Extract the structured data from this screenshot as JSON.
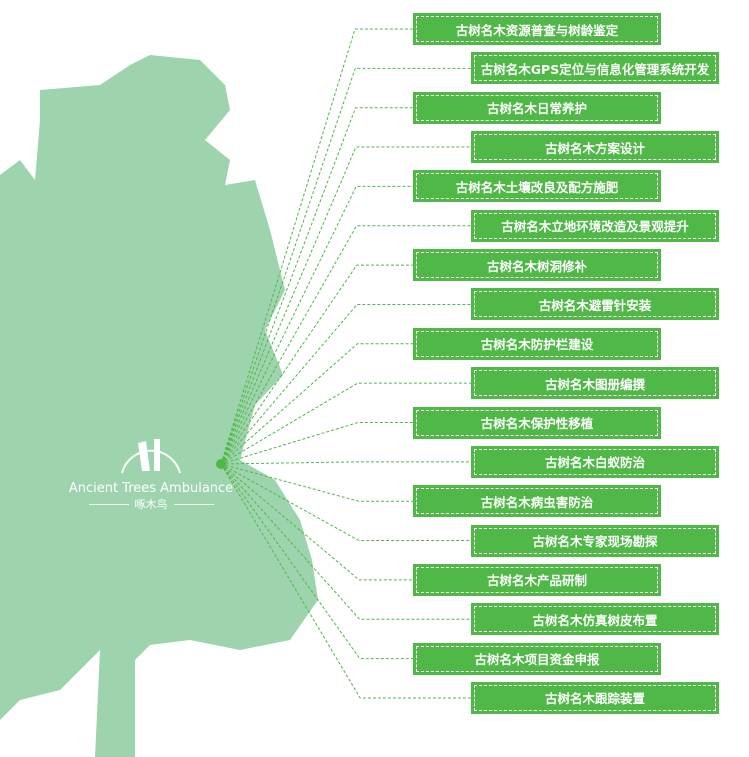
{
  "colors": {
    "tree": "#9dd4ad",
    "accent": "#4fb847",
    "line": "#4fb847"
  },
  "logo": {
    "english": "Ancient Trees Ambulance",
    "chinese": "啄木鸟"
  },
  "items": [
    "古树名木资源普查与树龄鉴定",
    "古树名木GPS定位与信息化管理系统开发",
    "古树名木日常养护",
    "古树名木方案设计",
    "古树名木土壤改良及配方施肥",
    "古树名木立地环境改造及景观提升",
    "古树名木树洞修补",
    "古树名木避雷针安装",
    "古树名木防护栏建设",
    "古树名木图册编撰",
    "古树名木保护性移植",
    "古树名木白蚁防治",
    "古树名木病虫害防治",
    "古树名木专家现场勘探",
    "古树名木产品研制",
    "古树名木仿真树皮布置",
    "古树名木项目资金申报",
    "古树名木跟踪装置"
  ]
}
